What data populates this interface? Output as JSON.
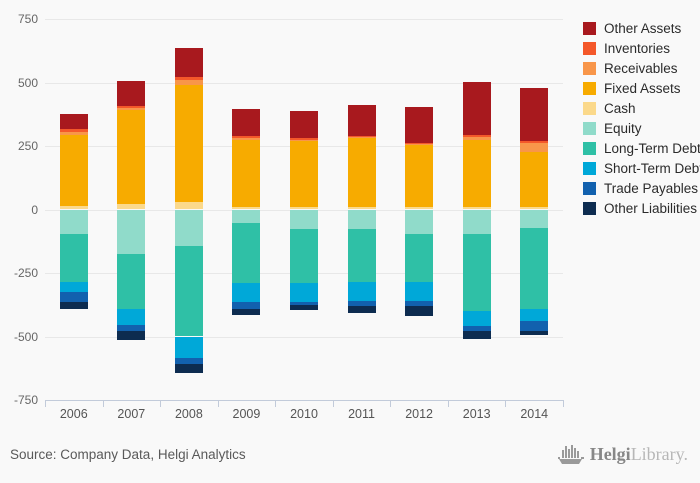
{
  "footer": {
    "source_text": "Source: Company Data, Helgi Analytics",
    "logo_helgi": "Helgi",
    "logo_library": "Library."
  },
  "chart_data": {
    "type": "bar",
    "stacked": true,
    "title": "",
    "xlabel": "",
    "ylabel": "",
    "ylim": [
      -750,
      750
    ],
    "yticks": [
      750,
      500,
      250,
      0,
      -250,
      -500,
      -750
    ],
    "grid": true,
    "legend_position": "right",
    "categories": [
      "2006",
      "2007",
      "2008",
      "2009",
      "2010",
      "2011",
      "2012",
      "2013",
      "2014"
    ],
    "series": [
      {
        "name": "Other Assets",
        "color": "#a8191e",
        "values": [
          60,
          100,
          115,
          107,
          107,
          121,
          143,
          208,
          210
        ]
      },
      {
        "name": "Inventories",
        "color": "#f4582a",
        "values": [
          10,
          8,
          10,
          8,
          6,
          4,
          4,
          9,
          5
        ]
      },
      {
        "name": "Receivables",
        "color": "#f8964a",
        "values": [
          10,
          8,
          20,
          8,
          5,
          4,
          4,
          12,
          35
        ]
      },
      {
        "name": "Fixed Assets",
        "color": "#f7ab00",
        "values": [
          280,
          370,
          460,
          265,
          262,
          273,
          245,
          265,
          220
        ]
      },
      {
        "name": "Cash",
        "color": "#fbd98b",
        "values": [
          15,
          20,
          30,
          8,
          8,
          8,
          8,
          8,
          8
        ]
      },
      {
        "name": "Equity",
        "color": "#90dbca",
        "values": [
          -95,
          -175,
          -145,
          -55,
          -78,
          -75,
          -95,
          -95,
          -73
        ]
      },
      {
        "name": "Long-Term Debt",
        "color": "#2fc0a6",
        "values": [
          -190,
          -215,
          -355,
          -235,
          -213,
          -212,
          -190,
          -305,
          -320
        ]
      },
      {
        "name": "Short-Term Debt",
        "color": "#00a8d8",
        "values": [
          -40,
          -65,
          -85,
          -75,
          -72,
          -74,
          -76,
          -60,
          -46
        ]
      },
      {
        "name": "Trade Payables",
        "color": "#1261ae",
        "values": [
          -40,
          -25,
          -25,
          -25,
          -12,
          -18,
          -20,
          -17,
          -41
        ]
      },
      {
        "name": "Other Liabilities",
        "color": "#0d2c50",
        "values": [
          -25,
          -35,
          -35,
          -25,
          -22,
          -30,
          -40,
          -33,
          -14
        ]
      }
    ],
    "positive_stack_order_bottom_to_top": [
      "Cash",
      "Fixed Assets",
      "Receivables",
      "Inventories",
      "Other Assets"
    ],
    "negative_stack_order_top_to_bottom": [
      "Equity",
      "Long-Term Debt",
      "Short-Term Debt",
      "Trade Payables",
      "Other Liabilities"
    ]
  }
}
